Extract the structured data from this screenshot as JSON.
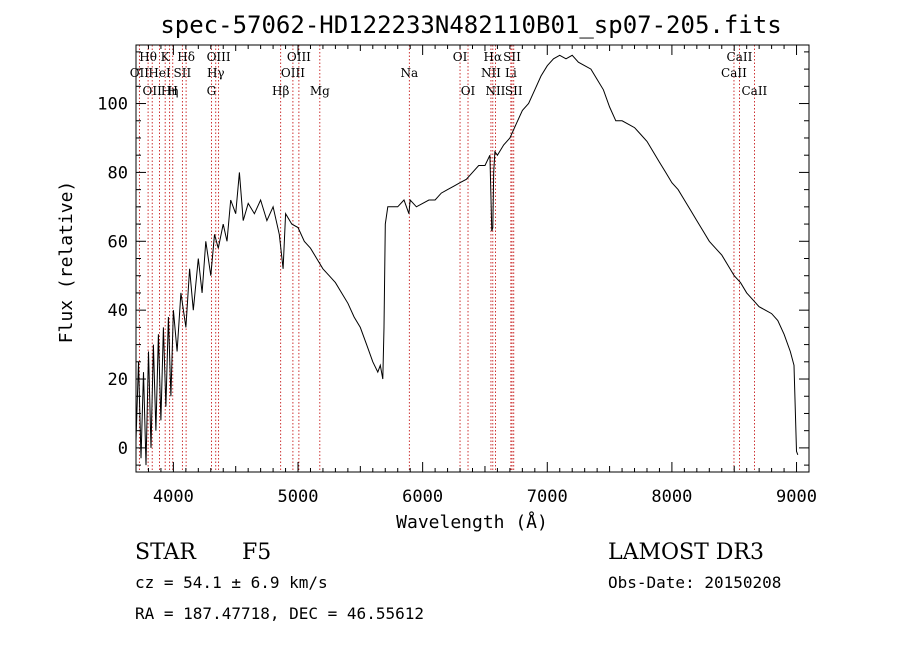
{
  "chart_data": {
    "type": "line",
    "title": "spec-57062-HD122233N482110B01_sp07-205.fits",
    "xlabel": "Wavelength (Å)",
    "ylabel": "Flux (relative)",
    "xlim": [
      3700,
      9100
    ],
    "ylim": [
      -7,
      117
    ],
    "xticks": [
      4000,
      5000,
      6000,
      7000,
      8000,
      9000
    ],
    "yticks": [
      0,
      20,
      40,
      60,
      80,
      100
    ],
    "series": [
      {
        "name": "spectrum",
        "x": [
          3700,
          3720,
          3740,
          3760,
          3780,
          3800,
          3820,
          3840,
          3860,
          3880,
          3900,
          3920,
          3940,
          3960,
          3980,
          4000,
          4030,
          4060,
          4100,
          4130,
          4160,
          4200,
          4230,
          4260,
          4300,
          4330,
          4360,
          4400,
          4430,
          4460,
          4500,
          4530,
          4560,
          4600,
          4650,
          4700,
          4750,
          4800,
          4850,
          4880,
          4900,
          4950,
          5000,
          5050,
          5100,
          5150,
          5200,
          5250,
          5300,
          5350,
          5400,
          5450,
          5500,
          5550,
          5600,
          5640,
          5660,
          5680,
          5690,
          5700,
          5720,
          5750,
          5800,
          5850,
          5890,
          5900,
          5950,
          6000,
          6050,
          6100,
          6150,
          6200,
          6250,
          6300,
          6350,
          6400,
          6450,
          6500,
          6540,
          6555,
          6563,
          6570,
          6580,
          6600,
          6650,
          6700,
          6750,
          6800,
          6850,
          6900,
          6950,
          7000,
          7050,
          7100,
          7150,
          7200,
          7250,
          7300,
          7350,
          7400,
          7450,
          7500,
          7550,
          7600,
          7650,
          7700,
          7750,
          7800,
          7850,
          7900,
          7950,
          8000,
          8050,
          8100,
          8150,
          8200,
          8250,
          8300,
          8350,
          8400,
          8450,
          8500,
          8550,
          8600,
          8650,
          8700,
          8750,
          8800,
          8850,
          8900,
          8950,
          8980,
          9000,
          9010
        ],
        "values": [
          2,
          25,
          -3,
          22,
          -5,
          28,
          0,
          30,
          5,
          33,
          8,
          35,
          12,
          38,
          15,
          40,
          28,
          45,
          35,
          52,
          40,
          55,
          45,
          60,
          50,
          62,
          58,
          65,
          60,
          72,
          68,
          80,
          66,
          71,
          68,
          72,
          66,
          70,
          62,
          52,
          68,
          65,
          64,
          60,
          58,
          55,
          52,
          50,
          48,
          45,
          42,
          38,
          35,
          30,
          25,
          22,
          24,
          20,
          35,
          65,
          70,
          70,
          70,
          72,
          68,
          72,
          70,
          71,
          72,
          72,
          74,
          75,
          76,
          77,
          78,
          80,
          82,
          82,
          85,
          63,
          64,
          80,
          86,
          85,
          88,
          90,
          94,
          98,
          100,
          104,
          108,
          111,
          113,
          114,
          113,
          114,
          112,
          111,
          110,
          107,
          104,
          99,
          95,
          95,
          94,
          93,
          91,
          89,
          86,
          83,
          80,
          77,
          75,
          72,
          69,
          66,
          63,
          60,
          58,
          56,
          53,
          50,
          48,
          45,
          43,
          41,
          40,
          39,
          37,
          33,
          28,
          24,
          -1,
          -2
        ]
      }
    ],
    "lines": [
      {
        "label": "OII",
        "x": 3727,
        "row": 2
      },
      {
        "label": "Hθ",
        "x": 3797,
        "row": 1
      },
      {
        "label": "OII",
        "x": 3830,
        "row": 3
      },
      {
        "label": "HeI",
        "x": 3889,
        "row": 2
      },
      {
        "label": "K",
        "x": 3934,
        "row": 1
      },
      {
        "label": "Hη",
        "x": 3970,
        "row": 3
      },
      {
        "label": "SII",
        "x": 4072,
        "row": 2
      },
      {
        "label": "H",
        "x": 3995,
        "row": 3
      },
      {
        "label": "Hδ",
        "x": 4102,
        "row": 1
      },
      {
        "label": "G",
        "x": 4305,
        "row": 3
      },
      {
        "label": "OIII",
        "x": 4363,
        "row": 1
      },
      {
        "label": "Hγ",
        "x": 4340,
        "row": 2
      },
      {
        "label": "Hβ",
        "x": 4861,
        "row": 3
      },
      {
        "label": "OIII",
        "x": 4959,
        "row": 2
      },
      {
        "label": "OIII",
        "x": 5007,
        "row": 1
      },
      {
        "label": "Mg",
        "x": 5175,
        "row": 3
      },
      {
        "label": "Na",
        "x": 5893,
        "row": 2
      },
      {
        "label": "OI",
        "x": 6300,
        "row": 1
      },
      {
        "label": "OI",
        "x": 6364,
        "row": 3
      },
      {
        "label": "Hα",
        "x": 6563,
        "row": 1
      },
      {
        "label": "NII",
        "x": 6548,
        "row": 2
      },
      {
        "label": "NII",
        "x": 6584,
        "row": 3
      },
      {
        "label": "SII",
        "x": 6717,
        "row": 1
      },
      {
        "label": "Li",
        "x": 6708,
        "row": 2
      },
      {
        "label": "SII",
        "x": 6731,
        "row": 3
      },
      {
        "label": "CaII",
        "x": 8542,
        "row": 1
      },
      {
        "label": "CaII",
        "x": 8498,
        "row": 2
      },
      {
        "label": "CaII",
        "x": 8662,
        "row": 3
      }
    ]
  },
  "info": {
    "object_class": "STAR",
    "subclass": "F5",
    "redshift": "cz = 54.1 ± 6.9 km/s",
    "coords": "RA = 187.47718, DEC =  46.55612",
    "survey": "LAMOST DR3",
    "obs_date": "Obs-Date: 20150208"
  },
  "colors": {
    "axis": "#000000",
    "spectrum": "#000000",
    "line_marker": "#c00000"
  }
}
